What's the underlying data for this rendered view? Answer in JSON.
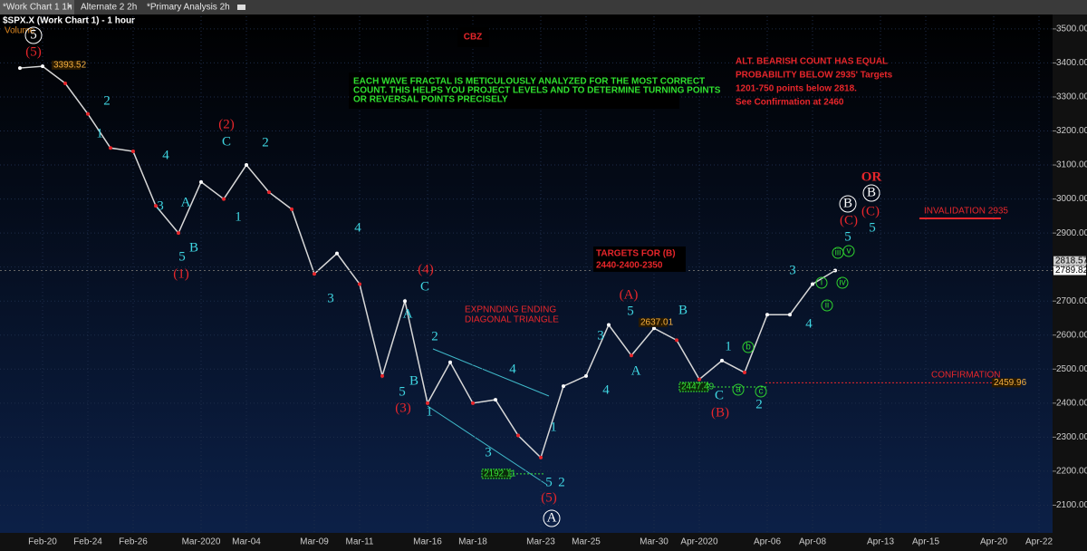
{
  "tabs": [
    "*Work Chart 1 1h",
    "Alternate 2 2h",
    "*Primary Analysis 2h"
  ],
  "chart_data": {
    "type": "line",
    "title": "$SPX.X (Work Chart 1) - 1 hour",
    "subtitle": "Volume",
    "categories": [
      null,
      "Feb-20",
      null,
      "Feb-24",
      null,
      "Feb-26",
      null,
      null,
      "Mar-2020",
      null,
      "Mar-04",
      null,
      null,
      "Mar-09",
      null,
      "Mar-11",
      null,
      null,
      "Mar-16",
      null,
      "Mar-18",
      null,
      null,
      "Mar-23",
      null,
      "Mar-25",
      null,
      null,
      "Mar-30",
      null,
      "Apr-2020",
      null,
      null,
      "Apr-06",
      null,
      "Apr-08",
      null,
      null,
      "Apr-13",
      null,
      "Apr-15",
      null,
      null,
      "Apr-20",
      null,
      "Apr-22"
    ],
    "values": [
      3385,
      3390,
      3340,
      3250,
      3150,
      3140,
      2980,
      2900,
      3050,
      3000,
      3100,
      3020,
      2970,
      2780,
      2840,
      2750,
      2480,
      2700,
      2400,
      2520,
      2400,
      2410,
      2305,
      2240,
      2450,
      2480,
      2630,
      2540,
      2620,
      2585,
      2470,
      2525,
      2490,
      2660,
      2660,
      2750,
      2789.82,
      null,
      null,
      null,
      null,
      null,
      null,
      null,
      null,
      null
    ],
    "color": "#d8d8d8",
    "ylim": [
      2040,
      3537
    ],
    "yticks": [
      {
        "value": 2100,
        "label": "2100.00"
      },
      {
        "value": 2200,
        "label": "2200.00"
      },
      {
        "value": 2300,
        "label": "2300.00"
      },
      {
        "value": 2400,
        "label": "2400.00"
      },
      {
        "value": 2500,
        "label": "2500.00"
      },
      {
        "value": 2600,
        "label": "2600.00"
      },
      {
        "value": 2700,
        "label": "2700.00"
      },
      {
        "value": 2800,
        "label": "2800.00"
      },
      {
        "value": 2900,
        "label": "2900.00"
      },
      {
        "value": 3000,
        "label": "3000.00"
      },
      {
        "value": 3100,
        "label": "3100.00"
      },
      {
        "value": 3200,
        "label": "3200.00"
      },
      {
        "value": 3300,
        "label": "3300.00"
      },
      {
        "value": 3400,
        "label": "3400.00"
      },
      {
        "value": 3500,
        "label": "3500.00"
      }
    ],
    "grid": true,
    "price_labels": [
      3393.52,
      2637.01,
      2447.49,
      2192.11,
      2459.96,
      2818.57,
      2789.82
    ],
    "annotations": {
      "cyan": {
        "color": "#3fd6e2",
        "labels": [
          "2",
          "1",
          "4",
          "3",
          "A",
          "B",
          "5",
          "1",
          "C",
          "2",
          "4",
          "3",
          "C",
          "A",
          "2",
          "B",
          "5",
          "1",
          "4",
          "3",
          "5",
          "2",
          "1",
          "3",
          "5",
          "A",
          "4",
          "B",
          "1",
          "C",
          "2",
          "3",
          "4",
          "5",
          "5"
        ]
      },
      "red": {
        "color": "#e8262b",
        "labels": [
          "(5)",
          "(2)",
          "(1)",
          "(4)",
          "(3)",
          "(5)",
          "(A)",
          "(B)",
          "(C)",
          "(C)",
          "OR"
        ]
      },
      "white": {
        "color": "#ffffff",
        "labels": [
          "5",
          "A",
          "B",
          "B"
        ]
      },
      "green": {
        "color": "#2fd42f",
        "labels": [
          "b",
          "a",
          "c",
          "iii",
          "v",
          "i",
          "iv",
          "ii"
        ]
      }
    },
    "notes": {
      "cbz": "CBZ",
      "fractal": [
        "EACH WAVE FRACTAL IS METICULOUSLY ANALYZED FOR  THE MOST CORRECT",
        "COUNT. THIS HELPS YOU PROJECT LEVELS AND TO DETERMINE TURNING POINTS",
        "OR REVERSAL POINTS PRECISELY"
      ],
      "alt": [
        "ALT. BEARISH COUNT HAS EQUAL",
        "PROBABILITY BELOW 2935' Targets",
        "1201-750 points below 2818.",
        " See Confirmation at 2460"
      ],
      "targets": [
        "TARGETS FOR (B)",
        "2440-2400-2350"
      ],
      "diagonal": [
        "EXPNNDING ENDING",
        "DIAGONAL TRIANGLE"
      ],
      "invalidation": "INVALIDATION 2935",
      "confirmation": "CONFIRMATION"
    }
  }
}
